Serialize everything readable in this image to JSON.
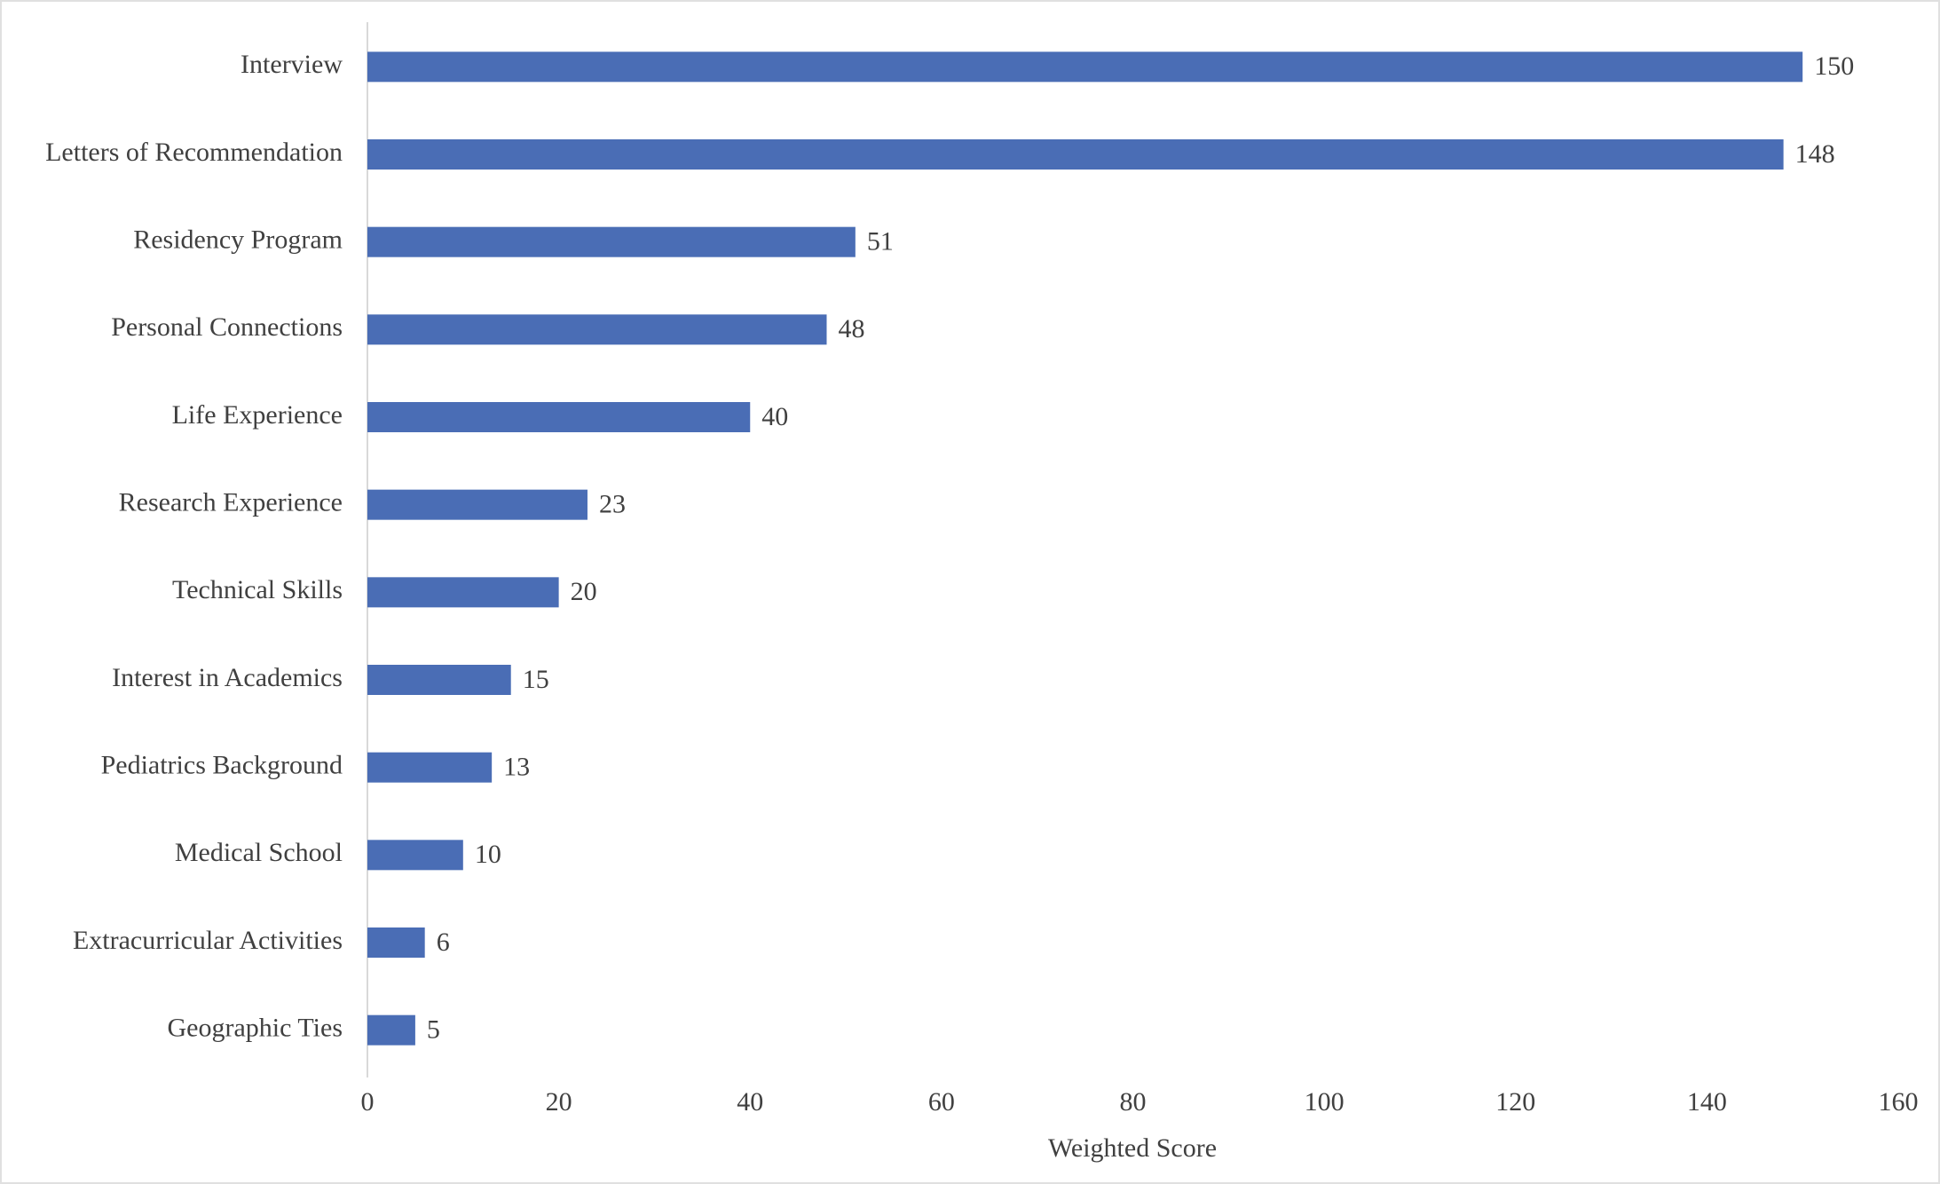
{
  "chart_data": {
    "type": "bar",
    "orientation": "horizontal",
    "xlabel": "Weighted Score",
    "categories": [
      "Interview",
      "Letters of Recommendation",
      "Residency Program",
      "Personal Connections",
      "Life Experience",
      "Research Experience",
      "Technical Skills",
      "Interest in Academics",
      "Pediatrics Background",
      "Medical School",
      "Extracurricular Activities",
      "Geographic Ties"
    ],
    "values": [
      150,
      148,
      51,
      48,
      40,
      23,
      20,
      15,
      13,
      10,
      6,
      5
    ],
    "color": "#4a6db5",
    "xlim": [
      0,
      160
    ],
    "xticks": [
      0,
      20,
      40,
      60,
      80,
      100,
      120,
      140,
      160
    ],
    "grid": false
  }
}
